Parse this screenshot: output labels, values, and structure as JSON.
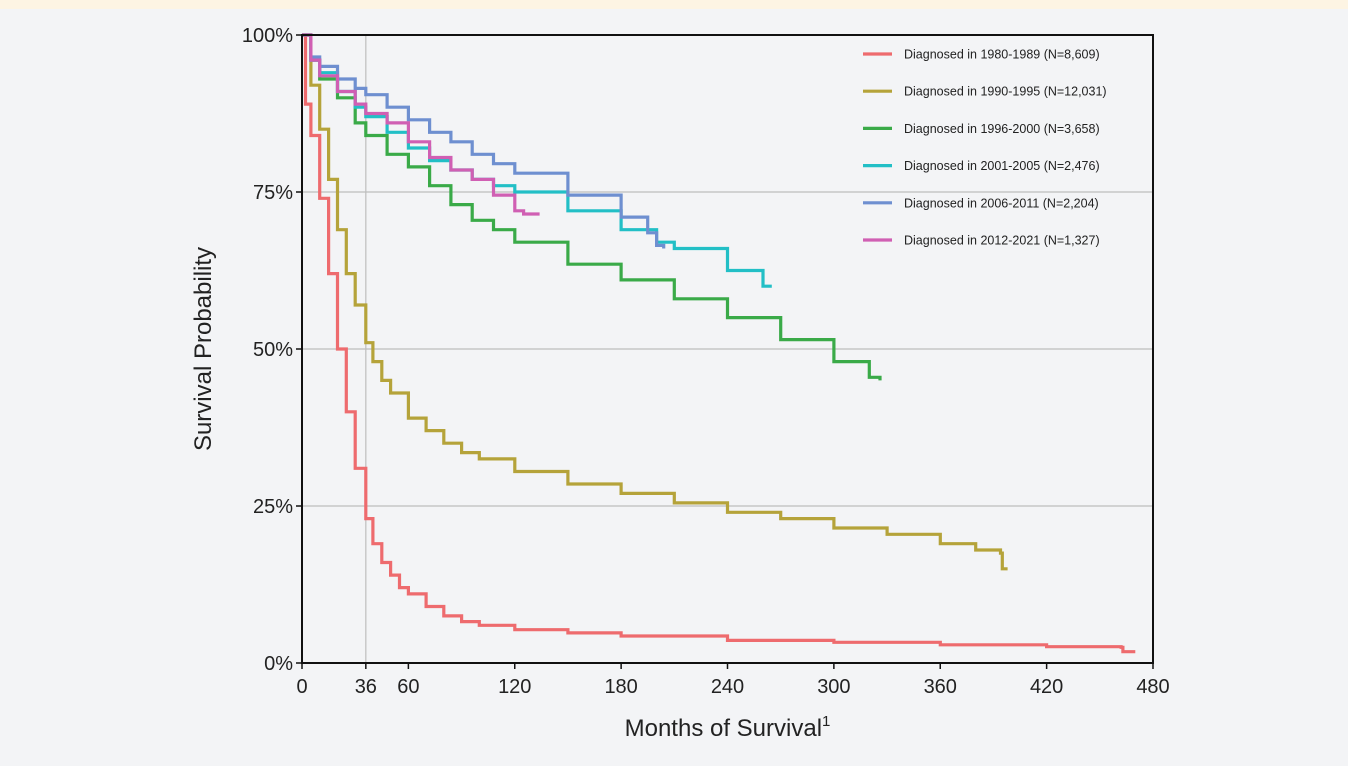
{
  "chart_data": {
    "type": "line",
    "xlabel": "Months of Survival",
    "xlabel_superscript": "1",
    "ylabel": "Survival Probability",
    "xlim": [
      0,
      480
    ],
    "ylim": [
      0,
      1
    ],
    "x_ticks": [
      0,
      36,
      60,
      120,
      180,
      240,
      300,
      360,
      420,
      480
    ],
    "x_tick_labels": [
      "0",
      "36",
      "60",
      "120",
      "180",
      "240",
      "300",
      "360",
      "420",
      "480"
    ],
    "y_ticks": [
      0,
      0.25,
      0.5,
      0.75,
      1
    ],
    "y_tick_labels": [
      "0%",
      "25%",
      "50%",
      "75%",
      "100%"
    ],
    "grid": {
      "horizontal": [
        0.25,
        0.5,
        0.75
      ],
      "vertical": [
        36
      ]
    },
    "legend_position": "top-right",
    "series": [
      {
        "name": "Diagnosed in 1980-1989 (N=8,609)",
        "color": "#ee6b6e",
        "x": [
          0,
          2,
          5,
          10,
          15,
          20,
          25,
          30,
          36,
          40,
          45,
          50,
          55,
          60,
          70,
          80,
          90,
          100,
          120,
          150,
          180,
          240,
          300,
          360,
          420,
          462,
          463,
          470
        ],
        "y": [
          1.0,
          0.89,
          0.84,
          0.74,
          0.62,
          0.5,
          0.4,
          0.31,
          0.23,
          0.19,
          0.16,
          0.14,
          0.12,
          0.11,
          0.09,
          0.075,
          0.066,
          0.06,
          0.053,
          0.048,
          0.043,
          0.036,
          0.033,
          0.029,
          0.026,
          0.025,
          0.018,
          0.018
        ]
      },
      {
        "name": "Diagnosed in 1990-1995 (N=12,031)",
        "color": "#b5a33a",
        "x": [
          0,
          5,
          10,
          15,
          20,
          25,
          30,
          36,
          40,
          45,
          50,
          60,
          70,
          80,
          90,
          100,
          120,
          150,
          180,
          210,
          240,
          270,
          300,
          330,
          360,
          380,
          394,
          395,
          398
        ],
        "y": [
          1.0,
          0.92,
          0.85,
          0.77,
          0.69,
          0.62,
          0.57,
          0.51,
          0.48,
          0.45,
          0.43,
          0.39,
          0.37,
          0.35,
          0.335,
          0.325,
          0.305,
          0.285,
          0.27,
          0.255,
          0.24,
          0.23,
          0.215,
          0.205,
          0.19,
          0.18,
          0.175,
          0.15,
          0.15
        ]
      },
      {
        "name": "Diagnosed in 1996-2000 (N=3,658)",
        "color": "#3aaa48",
        "x": [
          0,
          5,
          10,
          20,
          30,
          36,
          48,
          60,
          72,
          84,
          96,
          108,
          120,
          150,
          180,
          210,
          240,
          270,
          300,
          320,
          326
        ],
        "y": [
          1.0,
          0.96,
          0.93,
          0.9,
          0.86,
          0.84,
          0.81,
          0.79,
          0.76,
          0.73,
          0.705,
          0.69,
          0.67,
          0.635,
          0.61,
          0.58,
          0.55,
          0.515,
          0.48,
          0.455,
          0.45
        ]
      },
      {
        "name": "Diagnosed in 2001-2005 (N=2,476)",
        "color": "#22bfc6",
        "x": [
          0,
          5,
          10,
          20,
          30,
          36,
          48,
          60,
          72,
          84,
          96,
          108,
          120,
          150,
          180,
          200,
          210,
          240,
          260,
          265
        ],
        "y": [
          1.0,
          0.96,
          0.94,
          0.91,
          0.885,
          0.87,
          0.845,
          0.82,
          0.8,
          0.785,
          0.77,
          0.76,
          0.75,
          0.72,
          0.69,
          0.67,
          0.66,
          0.625,
          0.6,
          0.6
        ]
      },
      {
        "name": "Diagnosed in 2006-2011 (N=2,204)",
        "color": "#6e8fd0",
        "x": [
          0,
          5,
          10,
          20,
          30,
          36,
          48,
          60,
          72,
          84,
          96,
          108,
          120,
          150,
          180,
          195,
          200,
          204
        ],
        "y": [
          1.0,
          0.965,
          0.95,
          0.93,
          0.915,
          0.905,
          0.885,
          0.865,
          0.845,
          0.83,
          0.81,
          0.795,
          0.78,
          0.745,
          0.71,
          0.685,
          0.665,
          0.66
        ]
      },
      {
        "name": "Diagnosed in 2012-2021 (N=1,327)",
        "color": "#d05fb3",
        "x": [
          0,
          5,
          10,
          20,
          30,
          36,
          48,
          60,
          72,
          84,
          96,
          108,
          112,
          120,
          125,
          134
        ],
        "y": [
          1.0,
          0.96,
          0.935,
          0.91,
          0.89,
          0.875,
          0.86,
          0.83,
          0.805,
          0.785,
          0.77,
          0.745,
          0.745,
          0.72,
          0.715,
          0.715
        ]
      }
    ]
  }
}
